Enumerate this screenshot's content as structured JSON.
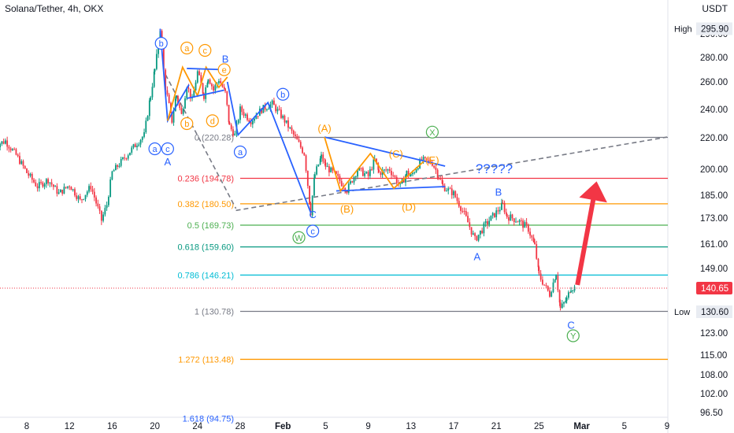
{
  "header": {
    "title": "Solana/Tether, 4h, OKX",
    "quote_currency": "USDT"
  },
  "chart_data": {
    "type": "candlestick",
    "symbol": "Solana/Tether",
    "timeframe": "4h",
    "exchange": "OKX",
    "ylim": [
      94,
      300
    ],
    "y_ticks": [
      {
        "v": 290,
        "label": "290.00"
      },
      {
        "v": 280,
        "label": "280.00"
      },
      {
        "v": 260,
        "label": "260.00"
      },
      {
        "v": 240,
        "label": "240.00"
      },
      {
        "v": 220,
        "label": "220.00"
      },
      {
        "v": 200,
        "label": "200.00"
      },
      {
        "v": 185,
        "label": "185.00"
      },
      {
        "v": 173,
        "label": "173.00"
      },
      {
        "v": 161,
        "label": "161.00"
      },
      {
        "v": 149,
        "label": "149.00"
      },
      {
        "v": 123,
        "label": "123.00"
      },
      {
        "v": 115,
        "label": "115.00"
      },
      {
        "v": 108,
        "label": "108.00"
      },
      {
        "v": 102,
        "label": "102.00"
      },
      {
        "v": 96.5,
        "label": "96.50"
      }
    ],
    "x_ticks": [
      {
        "d": 8,
        "label": "8"
      },
      {
        "d": 12,
        "label": "12"
      },
      {
        "d": 16,
        "label": "16"
      },
      {
        "d": 20,
        "label": "20"
      },
      {
        "d": 24,
        "label": "24"
      },
      {
        "d": 28,
        "label": "28"
      },
      {
        "d": 32,
        "label": "Feb"
      },
      {
        "d": 36,
        "label": "5"
      },
      {
        "d": 40,
        "label": "9"
      },
      {
        "d": 44,
        "label": "13"
      },
      {
        "d": 48,
        "label": "17"
      },
      {
        "d": 52,
        "label": "21"
      },
      {
        "d": 56,
        "label": "25"
      },
      {
        "d": 60,
        "label": "Mar"
      },
      {
        "d": 64,
        "label": "5"
      },
      {
        "d": 68,
        "label": "9"
      }
    ],
    "price_markers": [
      {
        "label": "High",
        "value": 295.9,
        "text": "295.90"
      },
      {
        "label": "Low",
        "value": 130.6,
        "text": "130.60"
      }
    ],
    "last_price": {
      "value": 140.65,
      "text": "140.65",
      "color": "#f23645"
    },
    "price_path": [
      [
        5,
        215
      ],
      [
        6,
        218
      ],
      [
        7,
        209
      ],
      [
        8,
        198
      ],
      [
        9,
        190
      ],
      [
        10,
        194
      ],
      [
        11,
        186
      ],
      [
        12,
        191
      ],
      [
        13,
        182
      ],
      [
        14,
        190
      ],
      [
        15,
        172
      ],
      [
        15.5,
        180
      ],
      [
        16,
        198
      ],
      [
        17,
        206
      ],
      [
        18,
        214
      ],
      [
        19,
        222
      ],
      [
        19.6,
        250
      ],
      [
        20,
        270
      ],
      [
        20.5,
        295.9
      ],
      [
        21,
        256
      ],
      [
        21.6,
        232
      ],
      [
        22,
        250
      ],
      [
        22.5,
        236
      ],
      [
        23,
        258
      ],
      [
        23.5,
        246
      ],
      [
        24,
        268
      ],
      [
        24.6,
        250
      ],
      [
        25,
        264
      ],
      [
        25.5,
        254
      ],
      [
        26,
        262
      ],
      [
        26.6,
        252
      ],
      [
        27,
        228
      ],
      [
        27.5,
        222
      ],
      [
        28,
        240
      ],
      [
        29,
        232
      ],
      [
        30,
        240
      ],
      [
        31,
        244
      ],
      [
        32,
        234
      ],
      [
        33,
        222
      ],
      [
        34,
        210
      ],
      [
        34.6,
        176
      ],
      [
        35,
        197
      ],
      [
        35.6,
        208
      ],
      [
        36,
        202
      ],
      [
        37,
        196
      ],
      [
        38,
        188
      ],
      [
        39,
        200
      ],
      [
        40,
        196
      ],
      [
        40.6,
        206
      ],
      [
        41,
        198
      ],
      [
        42,
        200
      ],
      [
        43,
        190
      ],
      [
        43.6,
        198
      ],
      [
        44,
        196
      ],
      [
        45,
        206
      ],
      [
        46,
        204
      ],
      [
        46.6,
        196
      ],
      [
        47,
        190
      ],
      [
        48,
        186
      ],
      [
        49,
        175
      ],
      [
        50,
        163
      ],
      [
        51,
        170
      ],
      [
        52,
        176
      ],
      [
        52.6,
        180
      ],
      [
        53,
        174
      ],
      [
        54,
        172
      ],
      [
        55,
        168
      ],
      [
        55.6,
        160
      ],
      [
        56,
        146
      ],
      [
        57,
        138
      ],
      [
        57.6,
        147
      ],
      [
        58,
        132
      ],
      [
        58.6,
        136
      ],
      [
        59,
        141
      ],
      [
        59.4,
        140.65
      ]
    ],
    "fib_levels": [
      {
        "ratio": "0",
        "value": 220.28,
        "label": "0 (220.28)",
        "color": "#787b86"
      },
      {
        "ratio": "0.236",
        "value": 194.78,
        "label": "0.236 (194.78)",
        "color": "#f23645"
      },
      {
        "ratio": "0.382",
        "value": 180.5,
        "label": "0.382 (180.50)",
        "color": "#ff9800"
      },
      {
        "ratio": "0.5",
        "value": 169.73,
        "label": "0.5 (169.73)",
        "color": "#4caf50"
      },
      {
        "ratio": "0.618",
        "value": 159.6,
        "label": "0.618 (159.60)",
        "color": "#089981"
      },
      {
        "ratio": "0.786",
        "value": 146.21,
        "label": "0.786 (146.21)",
        "color": "#00bcd4"
      },
      {
        "ratio": "1",
        "value": 130.78,
        "label": "1 (130.78)",
        "color": "#787b86"
      },
      {
        "ratio": "1.272",
        "value": 113.48,
        "label": "1.272 (113.48)",
        "color": "#ff9800"
      },
      {
        "ratio": "1.618",
        "value": 94.75,
        "label": "1.618 (94.75)",
        "color": "#2962ff"
      }
    ],
    "wave_labels": [
      {
        "text": "b",
        "d": 20.6,
        "v": 286,
        "circle": true,
        "color": "#2962ff"
      },
      {
        "text": "a",
        "d": 20.0,
        "v": 213,
        "circle": true,
        "color": "#2962ff"
      },
      {
        "text": "c",
        "d": 21.2,
        "v": 213,
        "circle": true,
        "color": "#2962ff"
      },
      {
        "text": "A",
        "d": 21.2,
        "v": 205,
        "circle": false,
        "color": "#2962ff"
      },
      {
        "text": "a",
        "d": 23.0,
        "v": 284,
        "circle": true,
        "color": "#ff9800"
      },
      {
        "text": "c",
        "d": 24.7,
        "v": 283,
        "circle": true,
        "color": "#ff9800"
      },
      {
        "text": "B",
        "d": 26.6,
        "v": 279,
        "circle": false,
        "color": "#2962ff"
      },
      {
        "text": "e",
        "d": 26.5,
        "v": 270,
        "circle": true,
        "color": "#ff9800"
      },
      {
        "text": "b",
        "d": 23.0,
        "v": 230,
        "circle": true,
        "color": "#ff9800"
      },
      {
        "text": "d",
        "d": 25.4,
        "v": 232,
        "circle": true,
        "color": "#ff9800"
      },
      {
        "text": "b",
        "d": 32.0,
        "v": 251,
        "circle": true,
        "color": "#2962ff"
      },
      {
        "text": "a",
        "d": 28.0,
        "v": 211,
        "circle": true,
        "color": "#2962ff"
      },
      {
        "text": "(A)",
        "d": 35.9,
        "v": 227,
        "circle": false,
        "color": "#ff9800"
      },
      {
        "text": "X",
        "d": 46.0,
        "v": 224,
        "circle": true,
        "color": "#4caf50"
      },
      {
        "text": "(C)",
        "d": 42.6,
        "v": 210,
        "circle": false,
        "color": "#ff9800"
      },
      {
        "text": "(E)",
        "d": 46.0,
        "v": 206,
        "circle": false,
        "color": "#ff9800"
      },
      {
        "text": "?????",
        "d": 51.8,
        "v": 200,
        "circle": false,
        "color": "#2962ff"
      },
      {
        "text": "(B)",
        "d": 38.0,
        "v": 178,
        "circle": false,
        "color": "#ff9800"
      },
      {
        "text": "(D)",
        "d": 43.8,
        "v": 179,
        "circle": false,
        "color": "#ff9800"
      },
      {
        "text": "C",
        "d": 34.8,
        "v": 175,
        "circle": false,
        "color": "#2962ff"
      },
      {
        "text": "c",
        "d": 34.8,
        "v": 167,
        "circle": true,
        "color": "#2962ff"
      },
      {
        "text": "W",
        "d": 33.5,
        "v": 164,
        "circle": true,
        "color": "#4caf50"
      },
      {
        "text": "B",
        "d": 52.2,
        "v": 187,
        "circle": false,
        "color": "#2962ff"
      },
      {
        "text": "A",
        "d": 50.2,
        "v": 155,
        "circle": false,
        "color": "#2962ff"
      },
      {
        "text": "C",
        "d": 59.0,
        "v": 126,
        "circle": false,
        "color": "#2962ff"
      },
      {
        "text": "Y",
        "d": 59.2,
        "v": 122,
        "circle": true,
        "color": "#4caf50"
      }
    ],
    "wave_lines": [
      {
        "color": "#2962ff",
        "pts": [
          [
            20.5,
            295.9
          ],
          [
            21.2,
            232
          ],
          [
            23.2,
            258
          ]
        ]
      },
      {
        "color": "#2962ff",
        "pts": [
          [
            26.8,
            260
          ],
          [
            27.8,
            222
          ],
          [
            30.6,
            245
          ],
          [
            34.6,
            176
          ]
        ]
      },
      {
        "color": "#ff9800",
        "pts": [
          [
            21.2,
            232
          ],
          [
            22.6,
            272
          ],
          [
            24.0,
            250
          ],
          [
            24.8,
            272
          ],
          [
            26.0,
            256
          ],
          [
            26.8,
            264
          ]
        ]
      },
      {
        "color": "#2962ff",
        "pts": [
          [
            23.0,
            271
          ],
          [
            26.5,
            270
          ]
        ]
      },
      {
        "color": "#2962ff",
        "pts": [
          [
            23.0,
            248
          ],
          [
            26.5,
            254
          ]
        ]
      },
      {
        "color": "#2962ff",
        "pts": [
          [
            35.9,
            220.5
          ],
          [
            47.2,
            202
          ]
        ]
      },
      {
        "color": "#2962ff",
        "pts": [
          [
            37.0,
            187.5
          ],
          [
            47.2,
            190
          ]
        ]
      },
      {
        "color": "#ff9800",
        "pts": [
          [
            35.9,
            220.5
          ],
          [
            37.4,
            187.5
          ],
          [
            40.2,
            210
          ],
          [
            42.4,
            189
          ],
          [
            45.2,
            205
          ]
        ]
      }
    ],
    "dashed_lines": [
      {
        "color": "#787b86",
        "pts": [
          [
            21.0,
            266
          ],
          [
            27.6,
            178
          ]
        ]
      },
      {
        "color": "#787b86",
        "pts": [
          [
            27.6,
            177
          ],
          [
            68.0,
            220.5
          ]
        ]
      }
    ],
    "arrow": {
      "from": [
        59.6,
        142
      ],
      "to": [
        61.4,
        193
      ],
      "color": "#f23645"
    }
  }
}
